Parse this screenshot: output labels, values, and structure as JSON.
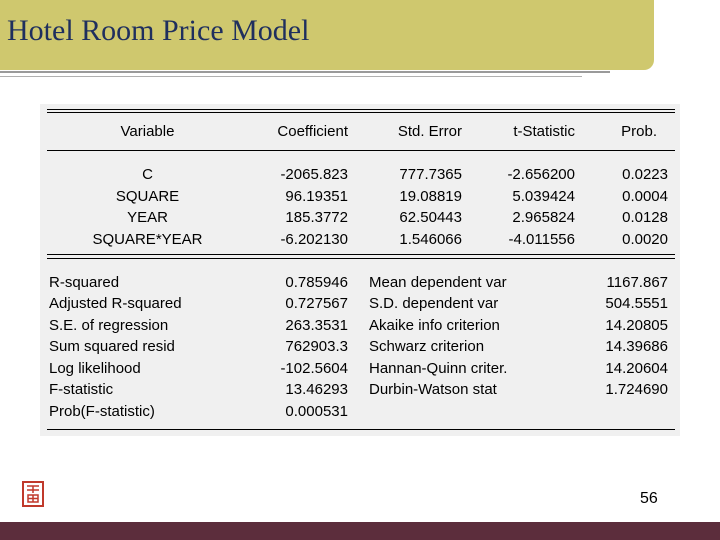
{
  "slide": {
    "title": "Hotel Room Price Model",
    "page_number": "56"
  },
  "table": {
    "headers": [
      "Variable",
      "Coefficient",
      "Std. Error",
      "t-Statistic",
      "Prob."
    ],
    "rows": [
      {
        "variable": "C",
        "coefficient": "-2065.823",
        "std_error": "777.7365",
        "t_stat": "-2.656200",
        "prob": "0.0223"
      },
      {
        "variable": "SQUARE",
        "coefficient": "96.19351",
        "std_error": "19.08819",
        "t_stat": "5.039424",
        "prob": "0.0004"
      },
      {
        "variable": "YEAR",
        "coefficient": "185.3772",
        "std_error": "62.50443",
        "t_stat": "2.965824",
        "prob": "0.0128"
      },
      {
        "variable": "SQUARE*YEAR",
        "coefficient": "-6.202130",
        "std_error": "1.546066",
        "t_stat": "-4.011556",
        "prob": "0.0020"
      }
    ],
    "stats_left": [
      {
        "label": "R-squared",
        "value": "0.785946"
      },
      {
        "label": "Adjusted R-squared",
        "value": "0.727567"
      },
      {
        "label": "S.E. of regression",
        "value": "263.3531"
      },
      {
        "label": "Sum squared resid",
        "value": "762903.3"
      },
      {
        "label": "Log likelihood",
        "value": "-102.5604"
      },
      {
        "label": "F-statistic",
        "value": "13.46293"
      },
      {
        "label": "Prob(F-statistic)",
        "value": "0.000531"
      }
    ],
    "stats_right": [
      {
        "label": "Mean dependent var",
        "value": "1167.867"
      },
      {
        "label": "S.D. dependent var",
        "value": "504.5551"
      },
      {
        "label": "Akaike info criterion",
        "value": "14.20805"
      },
      {
        "label": "Schwarz criterion",
        "value": "14.39686"
      },
      {
        "label": "Hannan-Quinn criter.",
        "value": "14.20604"
      },
      {
        "label": "Durbin-Watson stat",
        "value": "1.724690"
      }
    ]
  }
}
